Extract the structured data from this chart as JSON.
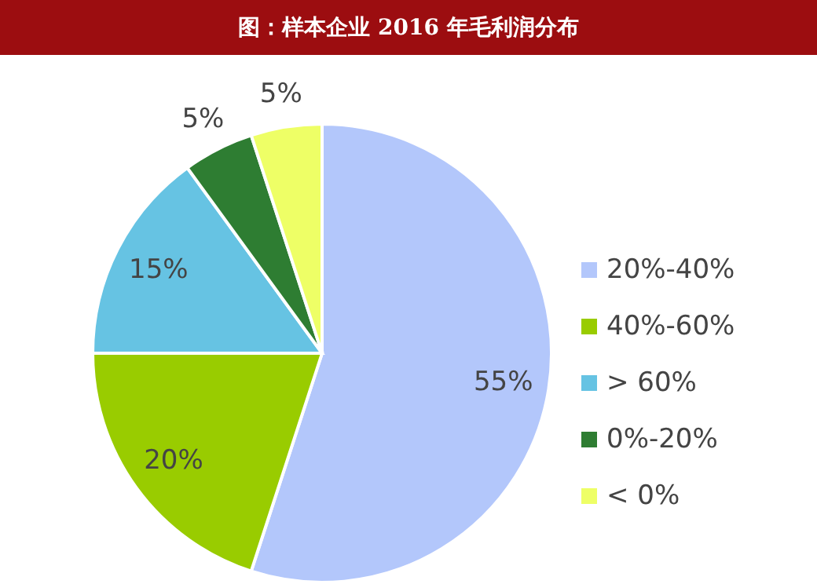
{
  "chart_data": {
    "type": "pie",
    "title": "图：样本企业 2016 年毛利润分布",
    "categories": [
      "20%-40%",
      "40%-60%",
      "> 60%",
      "0%-20%",
      "< 0%"
    ],
    "values": [
      55,
      20,
      15,
      5,
      5
    ],
    "colors": [
      "#b3c7fb",
      "#99cc00",
      "#66c3e3",
      "#2e7d32",
      "#eeff66"
    ],
    "value_labels": [
      "55%",
      "20%",
      "15%",
      "5%",
      "5%"
    ],
    "legend": "right"
  }
}
